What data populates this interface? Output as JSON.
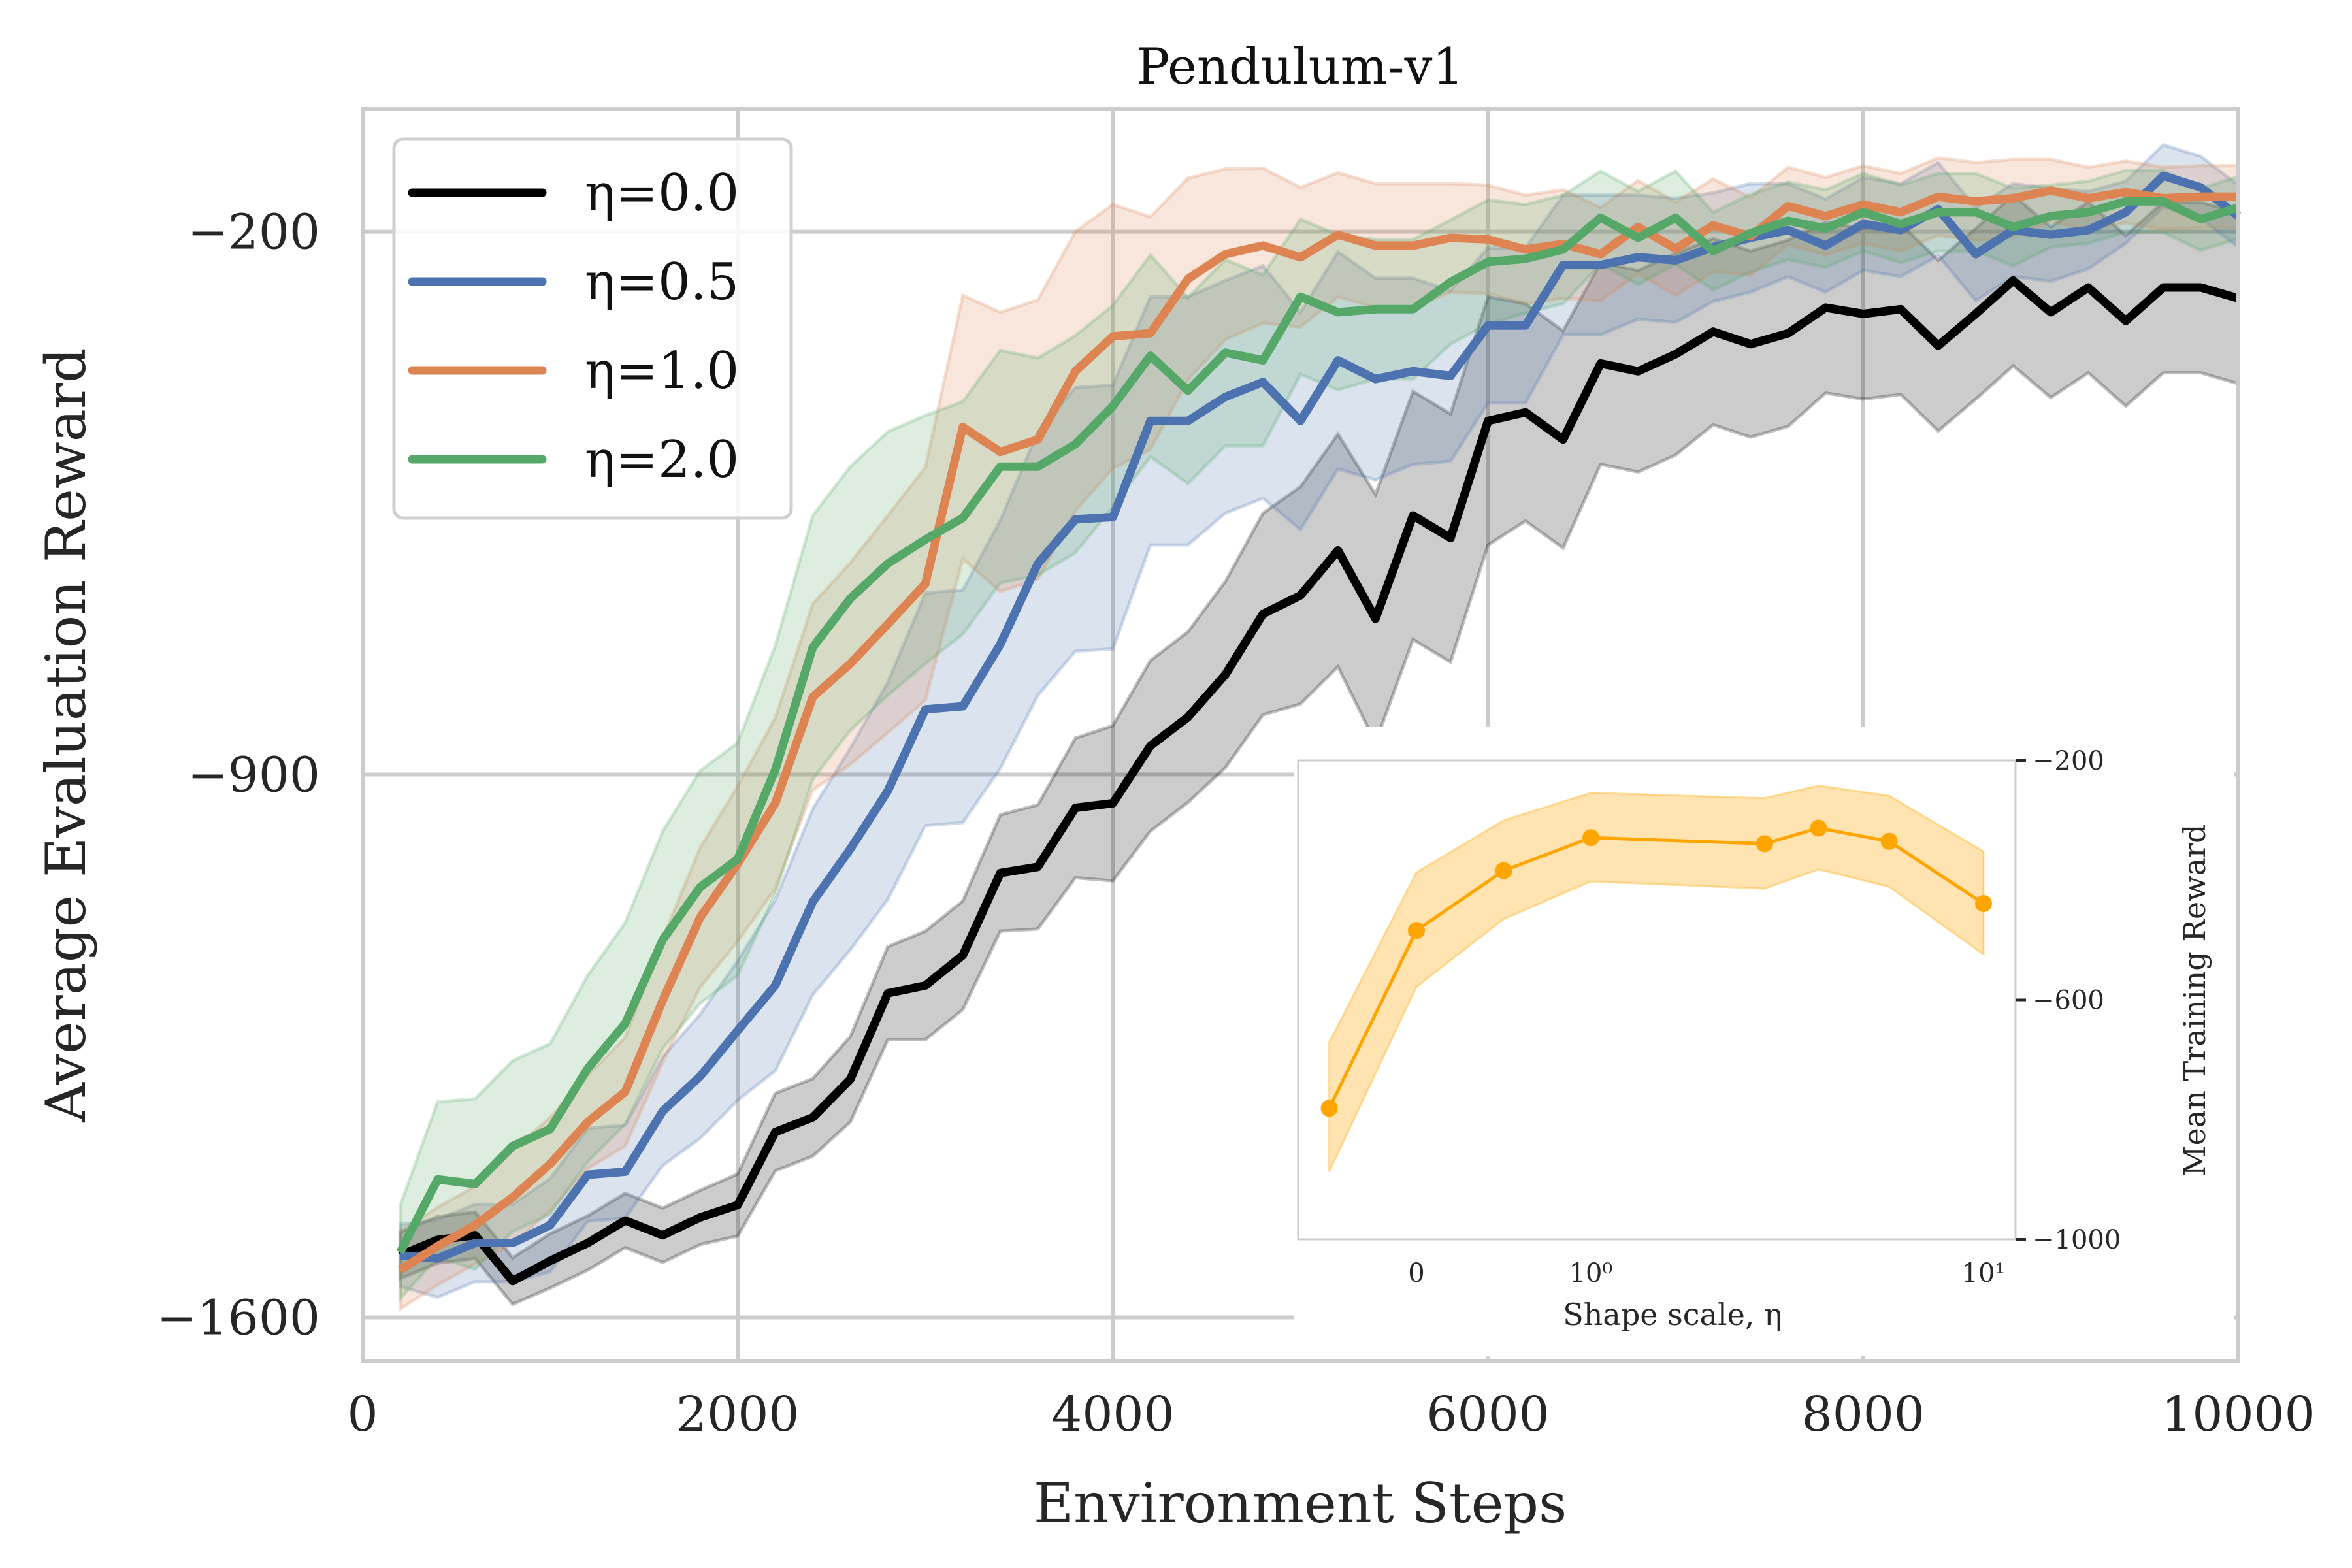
{
  "chart_data": [
    {
      "type": "line",
      "title": "Pendulum-v1",
      "xlabel": "Environment Steps",
      "ylabel": "Average Evaluation Reward",
      "xlim": [
        0,
        10000
      ],
      "ylim": [
        -1656,
        -42
      ],
      "grid": true,
      "legend": "upper-left",
      "x_ticks": [
        0,
        2000,
        4000,
        6000,
        8000,
        10000
      ],
      "x_tick_labels": [
        "0",
        "2000",
        "4000",
        "6000",
        "8000",
        "10000"
      ],
      "y_ticks": [
        -200,
        -900,
        -1600
      ],
      "y_tick_labels": [
        "−200",
        "−900",
        "−1600"
      ],
      "x": [
        200,
        400,
        600,
        800,
        1000,
        1200,
        1400,
        1600,
        1800,
        2000,
        2200,
        2400,
        2600,
        2800,
        3000,
        3200,
        3400,
        3600,
        3800,
        4000,
        4200,
        4400,
        4600,
        4800,
        5000,
        5200,
        5400,
        5600,
        5800,
        6000,
        6200,
        6400,
        6600,
        6800,
        7000,
        7200,
        7400,
        7600,
        7800,
        8000,
        8200,
        8400,
        8600,
        8800,
        9000,
        9200,
        9400,
        9600,
        9800,
        10000
      ],
      "series": [
        {
          "name": "η=0.0",
          "color": "#000000",
          "values": [
            -1520,
            -1500,
            -1494,
            -1553,
            -1527,
            -1504,
            -1475,
            -1494,
            -1471,
            -1455,
            -1361,
            -1342,
            -1293,
            -1182,
            -1172,
            -1133,
            -1027,
            -1019,
            -943,
            -937,
            -863,
            -826,
            -771,
            -693,
            -669,
            -611,
            -699,
            -566,
            -595,
            -444,
            -433,
            -468,
            -370,
            -380,
            -358,
            -329,
            -345,
            -331,
            -298,
            -306,
            -300,
            -347,
            -306,
            -263,
            -304,
            -272,
            -315,
            -272,
            -272,
            -286
          ],
          "band_halfwidth": [
            30,
            30,
            30,
            30,
            35,
            35,
            35,
            35,
            35,
            40,
            50,
            50,
            55,
            60,
            70,
            70,
            75,
            80,
            90,
            100,
            110,
            110,
            120,
            130,
            140,
            150,
            160,
            160,
            160,
            160,
            140,
            140,
            130,
            130,
            130,
            120,
            120,
            120,
            110,
            110,
            110,
            110,
            110,
            110,
            110,
            110,
            110,
            110,
            110,
            110
          ]
        },
        {
          "name": "η=0.5",
          "color": "#4c72b0",
          "values": [
            -1520,
            -1524,
            -1504,
            -1504,
            -1481,
            -1416,
            -1412,
            -1334,
            -1289,
            -1230,
            -1172,
            -1064,
            -996,
            -921,
            -816,
            -812,
            -732,
            -628,
            -571,
            -568,
            -444,
            -444,
            -413,
            -394,
            -444,
            -366,
            -390,
            -380,
            -386,
            -321,
            -321,
            -243,
            -243,
            -233,
            -237,
            -220,
            -208,
            -198,
            -218,
            -190,
            -198,
            -171,
            -229,
            -198,
            -204,
            -198,
            -175,
            -128,
            -143,
            -180
          ],
          "band_halfwidth": [
            40,
            50,
            50,
            50,
            60,
            60,
            60,
            70,
            80,
            90,
            110,
            120,
            130,
            140,
            150,
            150,
            160,
            170,
            170,
            170,
            160,
            160,
            150,
            150,
            140,
            140,
            130,
            120,
            110,
            100,
            100,
            90,
            90,
            80,
            80,
            70,
            70,
            60,
            60,
            60,
            60,
            60,
            60,
            60,
            60,
            50,
            40,
            40,
            40,
            40
          ]
        },
        {
          "name": "η=1.0",
          "color": "#dd8452",
          "values": [
            -1539,
            -1508,
            -1481,
            -1445,
            -1402,
            -1348,
            -1309,
            -1191,
            -1084,
            -1015,
            -937,
            -800,
            -757,
            -706,
            -654,
            -452,
            -484,
            -468,
            -380,
            -335,
            -331,
            -261,
            -229,
            -218,
            -233,
            -204,
            -218,
            -218,
            -208,
            -210,
            -223,
            -216,
            -229,
            -194,
            -222,
            -192,
            -206,
            -167,
            -180,
            -165,
            -175,
            -155,
            -161,
            -157,
            -147,
            -157,
            -149,
            -157,
            -155,
            -155
          ],
          "band_halfwidth": [
            50,
            50,
            50,
            60,
            60,
            60,
            70,
            80,
            90,
            100,
            110,
            120,
            130,
            140,
            150,
            170,
            180,
            180,
            180,
            170,
            150,
            130,
            110,
            100,
            90,
            80,
            80,
            80,
            70,
            70,
            70,
            70,
            60,
            60,
            60,
            60,
            50,
            50,
            50,
            50,
            50,
            50,
            50,
            50,
            40,
            40,
            40,
            40,
            40,
            40
          ]
        },
        {
          "name": "η=2.0",
          "color": "#55a868",
          "values": [
            -1516,
            -1422,
            -1428,
            -1379,
            -1357,
            -1279,
            -1221,
            -1113,
            -1045,
            -1009,
            -894,
            -736,
            -673,
            -628,
            -597,
            -569,
            -503,
            -503,
            -474,
            -425,
            -360,
            -405,
            -356,
            -366,
            -284,
            -304,
            -300,
            -300,
            -265,
            -239,
            -235,
            -223,
            -182,
            -208,
            -182,
            -225,
            -202,
            -186,
            -196,
            -175,
            -190,
            -175,
            -175,
            -194,
            -180,
            -175,
            -161,
            -161,
            -184,
            -169
          ],
          "band_halfwidth": [
            60,
            100,
            110,
            110,
            110,
            120,
            130,
            140,
            150,
            150,
            160,
            170,
            170,
            170,
            160,
            150,
            150,
            140,
            140,
            130,
            130,
            120,
            120,
            110,
            100,
            100,
            90,
            90,
            80,
            80,
            70,
            70,
            60,
            60,
            60,
            50,
            50,
            50,
            50,
            50,
            50,
            50,
            50,
            50,
            40,
            40,
            40,
            40,
            40,
            40
          ]
        }
      ]
    },
    {
      "type": "line",
      "title": "",
      "xlabel": "Shape scale, η",
      "ylabel": "Mean Training Reward",
      "x_scale": "symlog",
      "xlim": [
        -0.69,
        12
      ],
      "ylim": [
        -1000,
        -200
      ],
      "grid": false,
      "x_ticks": [
        0,
        1,
        10
      ],
      "x_tick_labels": [
        "0",
        "10⁰",
        "10¹"
      ],
      "y_ticks": [
        -200,
        -600,
        -1000
      ],
      "y_tick_labels": [
        "−200",
        "−600",
        "−1000"
      ],
      "y_axis_side": "right",
      "color": "#ffa500",
      "x": [
        -0.5,
        0,
        0.5,
        1,
        2.77,
        3.8,
        5.75,
        10
      ],
      "values": [
        -781,
        -484,
        -384,
        -329,
        -339,
        -313,
        -335,
        -439
      ],
      "upper": [
        -671,
        -387,
        -300,
        -254,
        -263,
        -242,
        -259,
        -352
      ],
      "lower": [
        -887,
        -578,
        -465,
        -402,
        -414,
        -382,
        -411,
        -524
      ]
    }
  ]
}
